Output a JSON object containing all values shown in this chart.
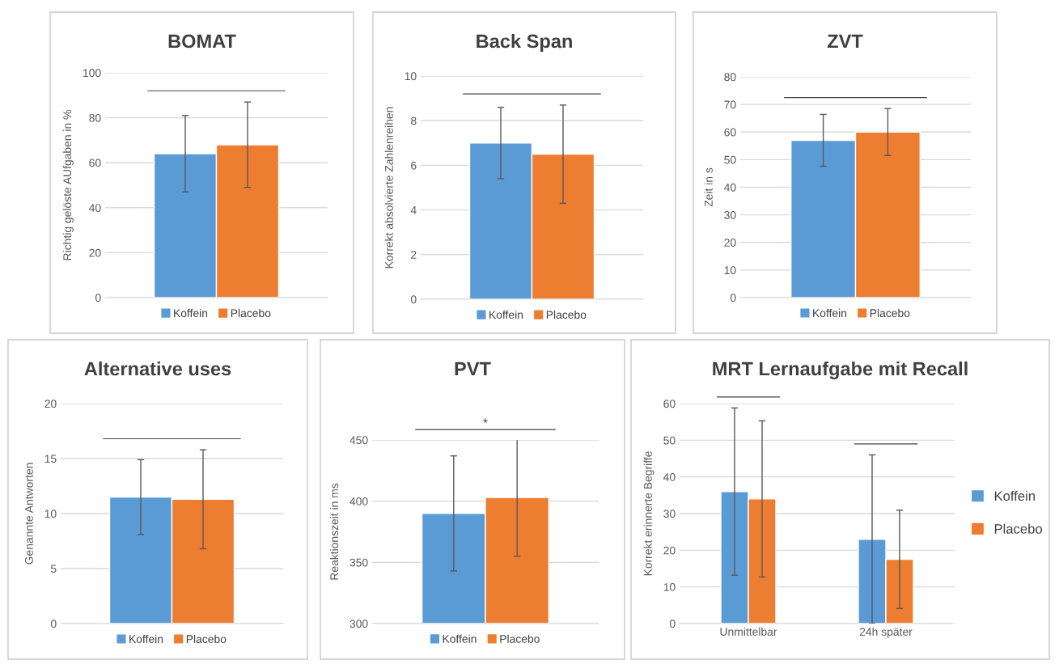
{
  "chart_data": [
    {
      "type": "bar",
      "title": "BOMAT",
      "ylabel": "Richtig gelöste AUfgaben in %",
      "categories": [
        null
      ],
      "series": [
        {
          "name": "Koffein",
          "color": "#5b9bd5",
          "values": [
            64
          ],
          "errors": [
            17
          ]
        },
        {
          "name": "Placebo",
          "color": "#ed7d31",
          "values": [
            68
          ],
          "errors": [
            19
          ]
        }
      ],
      "ylim": [
        0,
        100
      ],
      "yticks": [
        0,
        20,
        40,
        60,
        80,
        100
      ],
      "grid": "y",
      "legend": "bottom"
    },
    {
      "type": "bar",
      "title": "Back Span",
      "ylabel": "Korrekt absolvierte Zahlenreihen",
      "categories": [
        null
      ],
      "series": [
        {
          "name": "Koffein",
          "color": "#5b9bd5",
          "values": [
            7.0
          ],
          "errors": [
            1.6
          ]
        },
        {
          "name": "Placebo",
          "color": "#ed7d31",
          "values": [
            6.5
          ],
          "errors": [
            2.2
          ]
        }
      ],
      "ylim": [
        0,
        10
      ],
      "yticks": [
        0,
        2,
        4,
        6,
        8,
        10
      ],
      "grid": "y",
      "legend": "bottom"
    },
    {
      "type": "bar",
      "title": "ZVT",
      "ylabel": "Zeit in s",
      "categories": [
        null
      ],
      "series": [
        {
          "name": "Koffein",
          "color": "#5b9bd5",
          "values": [
            57
          ],
          "errors": [
            9.4
          ]
        },
        {
          "name": "Placebo",
          "color": "#ed7d31",
          "values": [
            60
          ],
          "errors": [
            8.5
          ]
        }
      ],
      "ylim": [
        0,
        80
      ],
      "yticks": [
        0,
        10,
        20,
        30,
        40,
        50,
        60,
        70,
        80
      ],
      "grid": "y",
      "legend": "bottom"
    },
    {
      "type": "bar",
      "title": "Alternative uses",
      "ylabel": "Genannte Antworten",
      "categories": [
        null
      ],
      "series": [
        {
          "name": "Koffein",
          "color": "#5b9bd5",
          "values": [
            11.5
          ],
          "errors": [
            3.4
          ]
        },
        {
          "name": "Placebo",
          "color": "#ed7d31",
          "values": [
            11.3
          ],
          "errors": [
            4.5
          ]
        }
      ],
      "ylim": [
        0,
        20
      ],
      "yticks": [
        0,
        5,
        10,
        15,
        20
      ],
      "grid": "y",
      "legend": "bottom"
    },
    {
      "type": "bar",
      "title": "PVT",
      "ylabel": "Reaktionszeit in ms",
      "categories": [
        null
      ],
      "series": [
        {
          "name": "Koffein",
          "color": "#5b9bd5",
          "values": [
            390
          ],
          "errors": [
            47
          ]
        },
        {
          "name": "Placebo",
          "color": "#ed7d31",
          "values": [
            403
          ],
          "errors": [
            48
          ]
        }
      ],
      "ylim": [
        300,
        450
      ],
      "yticks": [
        300,
        350,
        400,
        450
      ],
      "grid": "y",
      "legend": "bottom",
      "annotations": [
        "*"
      ]
    },
    {
      "type": "bar",
      "title": "MRT Lernaufgabe mit Recall",
      "ylabel": "Korrekt erinnerte Begriffe",
      "categories": [
        "Unmittelbar",
        "24h später"
      ],
      "series": [
        {
          "name": "Koffein",
          "color": "#5b9bd5",
          "values": [
            36,
            23
          ],
          "errors": [
            22.8,
            23
          ]
        },
        {
          "name": "Placebo",
          "color": "#ed7d31",
          "values": [
            34,
            17.5
          ],
          "errors": [
            21.3,
            13.4
          ]
        }
      ],
      "ylim": [
        0,
        60
      ],
      "yticks": [
        0,
        10,
        20,
        30,
        40,
        50,
        60
      ],
      "grid": "y",
      "legend": "right"
    }
  ]
}
